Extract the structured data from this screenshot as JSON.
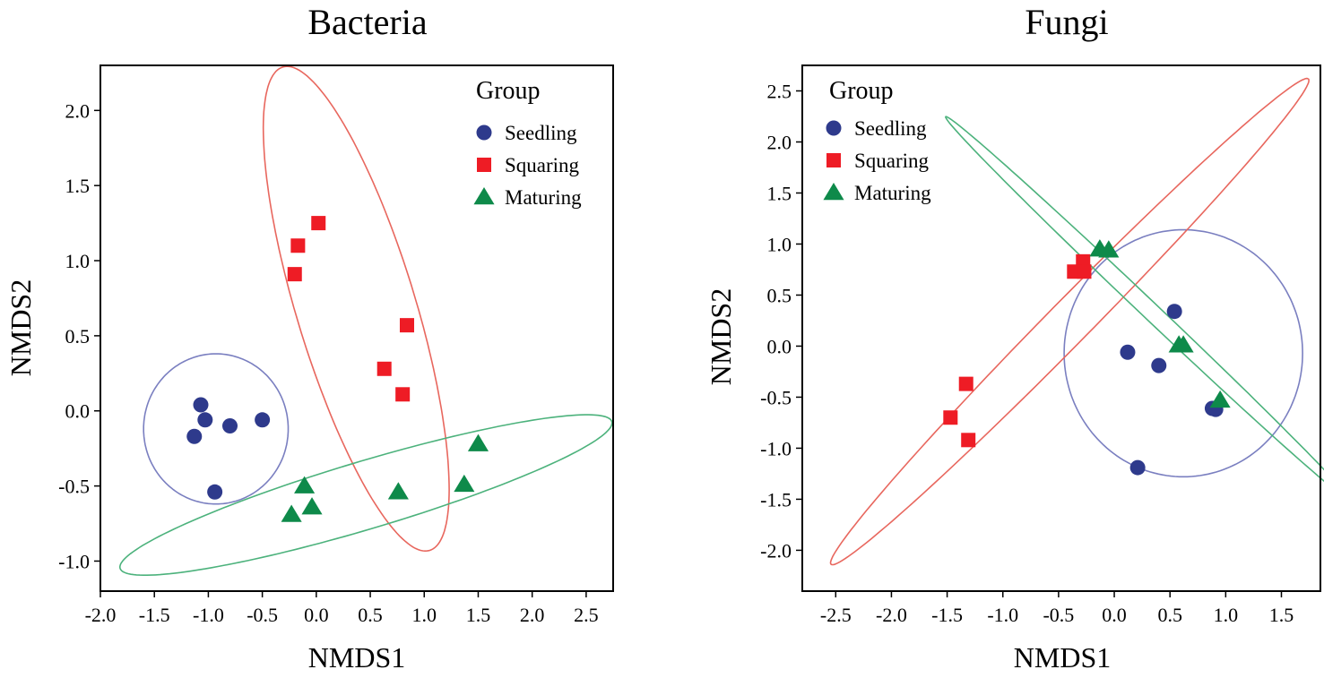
{
  "chart_data": [
    {
      "type": "scatter",
      "title": "Bacteria",
      "xlabel": "NMDS1",
      "ylabel": "NMDS2",
      "xlim": [
        -2.0,
        2.75
      ],
      "ylim": [
        -1.2,
        2.3
      ],
      "xticks": [
        -2.0,
        -1.5,
        -1.0,
        -0.5,
        0.0,
        0.5,
        1.0,
        1.5,
        2.0,
        2.5
      ],
      "xtick_labels": [
        "-2.0",
        "-1.5",
        "-1.0",
        "-0.5",
        "0.0",
        "0.5",
        "1.0",
        "1.5",
        "2.0",
        "2.5"
      ],
      "yticks": [
        -1.0,
        -0.5,
        0.0,
        0.5,
        1.0,
        1.5,
        2.0
      ],
      "ytick_labels": [
        "-1.0",
        "-0.5",
        "0.0",
        "0.5",
        "1.0",
        "1.5",
        "2.0"
      ],
      "legend_title": "Group",
      "legend_position": "top-right",
      "series": [
        {
          "name": "Seedling",
          "marker": "circle",
          "color": "#2E3A8C",
          "ellipse_color": "#7A7FC0",
          "points": [
            [
              -1.07,
              0.04
            ],
            [
              -1.03,
              -0.06
            ],
            [
              -0.8,
              -0.1
            ],
            [
              -0.5,
              -0.06
            ],
            [
              -1.13,
              -0.17
            ],
            [
              -0.94,
              -0.54
            ]
          ],
          "ellipse": {
            "cx": -0.93,
            "cy": -0.12,
            "rx": 0.67,
            "ry": 0.5,
            "angle": 0
          }
        },
        {
          "name": "Squaring",
          "marker": "square",
          "color": "#EE1C25",
          "ellipse_color": "#E8675E",
          "points": [
            [
              0.02,
              1.25
            ],
            [
              -0.17,
              1.1
            ],
            [
              -0.2,
              0.91
            ],
            [
              0.84,
              0.57
            ],
            [
              0.63,
              0.28
            ],
            [
              0.8,
              0.11
            ]
          ],
          "ellipse": {
            "cx": 0.37,
            "cy": 0.68,
            "rx": 1.75,
            "ry": 0.53,
            "angle": -66
          }
        },
        {
          "name": "Maturing",
          "marker": "triangle",
          "color": "#0E8A4A",
          "ellipse_color": "#4CB27C",
          "points": [
            [
              1.5,
              -0.22
            ],
            [
              -0.11,
              -0.5
            ],
            [
              1.37,
              -0.49
            ],
            [
              0.76,
              -0.54
            ],
            [
              -0.04,
              -0.64
            ],
            [
              -0.23,
              -0.69
            ]
          ],
          "ellipse": {
            "cx": 0.46,
            "cy": -0.56,
            "rx": 2.33,
            "ry": 0.23,
            "angle": 12
          }
        }
      ]
    },
    {
      "type": "scatter",
      "title": "Fungi",
      "xlabel": "NMDS1",
      "ylabel": "NMDS2",
      "xlim": [
        -2.8,
        1.85
      ],
      "ylim": [
        -2.4,
        2.75
      ],
      "xticks": [
        -2.5,
        -2.0,
        -1.5,
        -1.0,
        -0.5,
        0.0,
        0.5,
        1.0,
        1.5
      ],
      "xtick_labels": [
        "-2.5",
        "-2.0",
        "-1.5",
        "-1.0",
        "-0.5",
        "0.0",
        "0.5",
        "1.0",
        "1.5"
      ],
      "yticks": [
        -2.0,
        -1.5,
        -1.0,
        -0.5,
        0.0,
        0.5,
        1.0,
        1.5,
        2.0,
        2.5
      ],
      "ytick_labels": [
        "-2.0",
        "-1.5",
        "-1.0",
        "-0.5",
        "0.0",
        "0.5",
        "1.0",
        "1.5",
        "2.0",
        "2.5"
      ],
      "legend_title": "Group",
      "legend_position": "top-left",
      "series": [
        {
          "name": "Seedling",
          "marker": "circle",
          "color": "#2E3A8C",
          "ellipse_color": "#7A7FC0",
          "points": [
            [
              0.54,
              0.34
            ],
            [
              0.12,
              -0.06
            ],
            [
              0.4,
              -0.19
            ],
            [
              0.88,
              -0.61
            ],
            [
              0.91,
              -0.62
            ],
            [
              0.21,
              -1.19
            ]
          ],
          "ellipse": {
            "cx": 0.62,
            "cy": -0.07,
            "rx": 1.07,
            "ry": 1.21,
            "angle": 0
          }
        },
        {
          "name": "Squaring",
          "marker": "square",
          "color": "#EE1C25",
          "ellipse_color": "#E8675E",
          "points": [
            [
              -0.28,
              0.83
            ],
            [
              -0.36,
              0.73
            ],
            [
              -0.27,
              0.73
            ],
            [
              -1.33,
              -0.37
            ],
            [
              -1.47,
              -0.7
            ],
            [
              -1.31,
              -0.92
            ]
          ],
          "ellipse": {
            "cx": -0.4,
            "cy": 0.24,
            "rx": 3.2,
            "ry": 0.2,
            "angle": 48
          }
        },
        {
          "name": "Maturing",
          "marker": "triangle",
          "color": "#0E8A4A",
          "ellipse_color": "#4CB27C",
          "points": [
            [
              -0.13,
              0.95
            ],
            [
              -0.05,
              0.94
            ],
            [
              0.58,
              0.01
            ],
            [
              0.62,
              0.01
            ],
            [
              0.95,
              -0.53
            ]
          ],
          "ellipse": {
            "cx": 0.3,
            "cy": 0.37,
            "rx": 2.61,
            "ry": 0.08,
            "angle": -46
          }
        }
      ]
    }
  ]
}
